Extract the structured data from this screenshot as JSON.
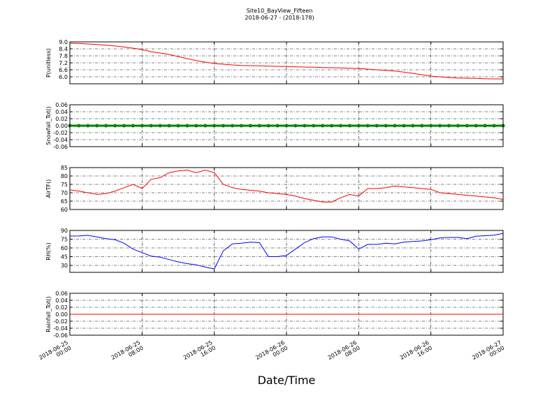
{
  "chart_data": {
    "type": "line",
    "title": "Site10_BayView_Fifteen",
    "subtitle": "2018-06-27 - (2018-178)",
    "xlabel": "Date/Time",
    "x": [
      "2018-06-25 00:00",
      "2018-06-25 01:00",
      "2018-06-25 02:00",
      "2018-06-25 03:00",
      "2018-06-25 04:00",
      "2018-06-25 05:00",
      "2018-06-25 06:00",
      "2018-06-25 07:00",
      "2018-06-25 08:00",
      "2018-06-25 09:00",
      "2018-06-25 10:00",
      "2018-06-25 11:00",
      "2018-06-25 12:00",
      "2018-06-25 13:00",
      "2018-06-25 14:00",
      "2018-06-25 15:00",
      "2018-06-25 16:00",
      "2018-06-25 17:00",
      "2018-06-25 18:00",
      "2018-06-25 19:00",
      "2018-06-25 20:00",
      "2018-06-25 21:00",
      "2018-06-25 22:00",
      "2018-06-25 23:00",
      "2018-06-26 00:00",
      "2018-06-26 01:00",
      "2018-06-26 02:00",
      "2018-06-26 03:00",
      "2018-06-26 04:00",
      "2018-06-26 05:00",
      "2018-06-26 06:00",
      "2018-06-26 07:00",
      "2018-06-26 08:00",
      "2018-06-26 09:00",
      "2018-06-26 10:00",
      "2018-06-26 11:00",
      "2018-06-26 12:00",
      "2018-06-26 13:00",
      "2018-06-26 14:00",
      "2018-06-26 15:00",
      "2018-06-26 16:00",
      "2018-06-26 17:00",
      "2018-06-26 18:00",
      "2018-06-26 19:00",
      "2018-06-26 20:00",
      "2018-06-26 21:00",
      "2018-06-26 22:00",
      "2018-06-26 23:00",
      "2018-06-27 00:00"
    ],
    "xlim": [
      "2018-06-25 00:00",
      "2018-06-27 00:00"
    ],
    "xticks": [
      {
        "value": "2018-06-25 00:00",
        "label": "2018-06-25\n00:00"
      },
      {
        "value": "2018-06-25 08:00",
        "label": "2018-06-25\n08:00"
      },
      {
        "value": "2018-06-25 16:00",
        "label": "2018-06-25\n16:00"
      },
      {
        "value": "2018-06-26 00:00",
        "label": "2018-06-26\n00:00"
      },
      {
        "value": "2018-06-26 08:00",
        "label": "2018-06-26\n08:00"
      },
      {
        "value": "2018-06-26 16:00",
        "label": "2018-06-26\n16:00"
      },
      {
        "value": "2018-06-27 00:00",
        "label": "2018-06-27\n00:00"
      }
    ],
    "grid": true,
    "panels": [
      {
        "ylabel": "P(unitless)",
        "ylim": [
          5.4,
          9.0
        ],
        "yticks": [
          {
            "value": 6.0,
            "label": "6.0"
          },
          6.6,
          7.2,
          7.8,
          8.4,
          {
            "value": 9.0,
            "label": "9.0"
          }
        ],
        "series": [
          {
            "color": "#ff0000",
            "values": [
              8.88,
              8.86,
              8.82,
              8.78,
              8.72,
              8.66,
              8.56,
              8.46,
              8.34,
              8.16,
              8.04,
              7.92,
              7.74,
              7.56,
              7.4,
              7.26,
              7.14,
              7.08,
              7.02,
              6.98,
              6.96,
              6.94,
              6.92,
              6.9,
              6.88,
              6.86,
              6.84,
              6.82,
              6.8,
              6.78,
              6.76,
              6.74,
              6.72,
              6.66,
              6.6,
              6.56,
              6.5,
              6.4,
              6.3,
              6.18,
              6.06,
              6.0,
              5.94,
              5.9,
              5.88,
              5.86,
              5.84,
              5.82,
              5.82
            ]
          }
        ]
      },
      {
        "ylabel": "Snowfall_Tot()",
        "ylim": [
          -0.06,
          0.06
        ],
        "yticks": [
          -0.06,
          -0.04,
          -0.02,
          {
            "value": 0,
            "label": "0.00"
          },
          0.02,
          0.04,
          0.06
        ],
        "series": [
          {
            "color": "#008000",
            "marker": "o",
            "values": [
              0,
              0,
              0,
              0,
              0,
              0,
              0,
              0,
              0,
              0,
              0,
              0,
              0,
              0,
              0,
              0,
              0,
              0,
              0,
              0,
              0,
              0,
              0,
              0,
              0,
              0,
              0,
              0,
              0,
              0,
              0,
              0,
              0,
              0,
              0,
              0,
              0,
              0,
              0,
              0,
              0,
              0,
              0,
              0,
              0,
              0,
              0,
              0,
              0
            ]
          }
        ]
      },
      {
        "ylabel": "AirTF()",
        "ylim": [
          60,
          85
        ],
        "yticks": [
          60,
          65,
          70,
          75,
          80,
          85
        ],
        "series": [
          {
            "color": "#ff0000",
            "values": [
              71.7,
              71,
              70,
              69,
              69.5,
              71,
              73,
              75,
              72.5,
              78,
              79,
              82,
              83,
              83.5,
              82,
              83.5,
              82,
              75,
              73,
              72,
              71.5,
              71,
              70,
              69.5,
              69,
              68,
              66.5,
              65.5,
              64.5,
              64.5,
              67,
              69,
              68,
              72.5,
              72.5,
              73,
              74,
              73.5,
              73,
              72.5,
              72,
              70,
              69.5,
              69,
              68.5,
              68,
              67.5,
              67,
              66
            ]
          }
        ]
      },
      {
        "ylabel": "RH(%)",
        "ylim": [
          18,
          90
        ],
        "yticks": [
          30,
          45,
          60,
          75,
          90
        ],
        "series": [
          {
            "color": "#0000ff",
            "values": [
              80.4,
              80.5,
              81.6,
              79,
              76,
              74,
              68,
              58,
              52,
              46,
              44,
              40,
              36,
              33,
              31,
              27,
              24,
              55,
              67,
              68,
              70,
              69,
              45,
              45,
              47,
              58,
              69,
              76,
              79,
              79,
              75,
              72,
              58,
              66,
              66,
              68,
              67,
              70,
              71,
              72,
              74,
              77,
              78,
              78,
              76,
              80,
              81,
              82,
              85
            ]
          }
        ]
      },
      {
        "ylabel": "Rainfall_Tot()",
        "ylim": [
          -0.06,
          0.06
        ],
        "yticks": [
          -0.06,
          -0.04,
          -0.02,
          {
            "value": 0,
            "label": "0.00"
          },
          0.02,
          0.04,
          0.06
        ],
        "series": [
          {
            "color": "#ff0000",
            "values": [
              0,
              0,
              0,
              0,
              0,
              0,
              0,
              0,
              0,
              0,
              0,
              0,
              0,
              0,
              0,
              0,
              0,
              0,
              0,
              0,
              0,
              0,
              0,
              0,
              0,
              0,
              0,
              0,
              0,
              0,
              0,
              0,
              0,
              0,
              0,
              0,
              0,
              0,
              0,
              0,
              0,
              0,
              0,
              0,
              0,
              0,
              0,
              0,
              0
            ]
          }
        ]
      }
    ]
  }
}
